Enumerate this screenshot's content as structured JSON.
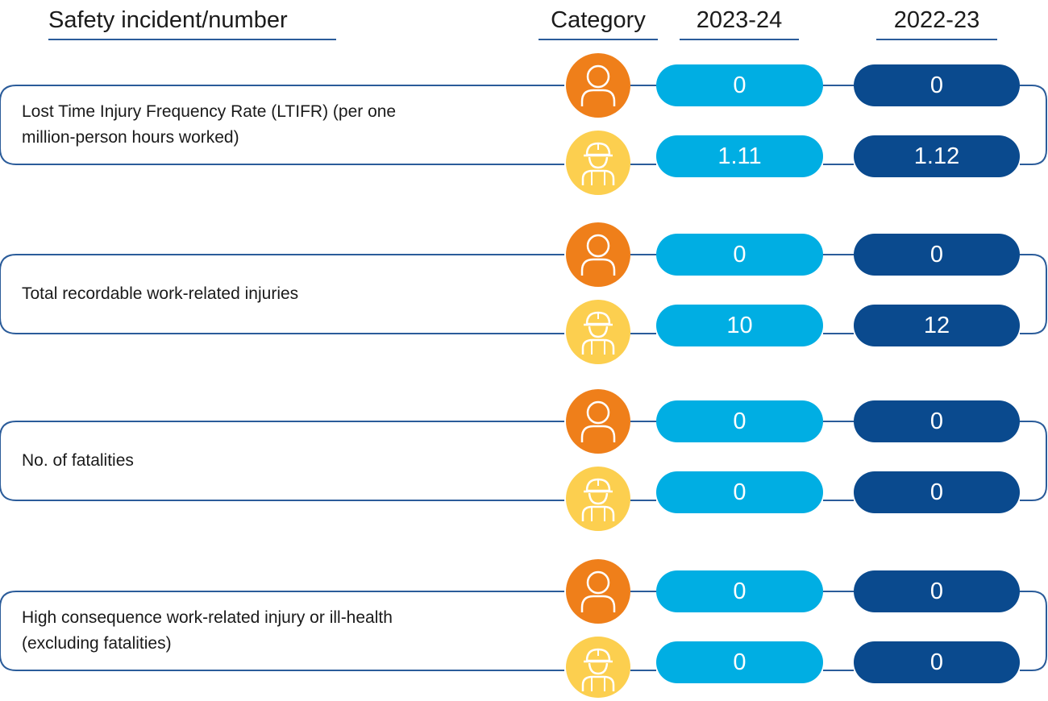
{
  "header": {
    "incident": "Safety incident/number",
    "category": "Category",
    "year_current": "2023-24",
    "year_previous": "2022-23"
  },
  "colors": {
    "employee_icon": "#ef7f1a",
    "worker_icon": "#fccf4f",
    "current_year_pill": "#00aee3",
    "previous_year_pill": "#0a4a8e",
    "frame_line": "#2b5c9a"
  },
  "icons": {
    "employee": "person-icon",
    "worker": "hard-hat-worker-icon"
  },
  "rows": [
    {
      "label": "Lost Time Injury Frequency Rate (LTIFR) (per one million-person hours worked)",
      "employee": {
        "current": "0",
        "previous": "0"
      },
      "worker": {
        "current": "1.11",
        "previous": "1.12"
      }
    },
    {
      "label": "Total recordable work-related injuries",
      "employee": {
        "current": "0",
        "previous": "0"
      },
      "worker": {
        "current": "10",
        "previous": "12"
      }
    },
    {
      "label": "No. of fatalities",
      "employee": {
        "current": "0",
        "previous": "0"
      },
      "worker": {
        "current": "0",
        "previous": "0"
      }
    },
    {
      "label": "High consequence work-related injury or ill-health (excluding fatalities)",
      "employee": {
        "current": "0",
        "previous": "0"
      },
      "worker": {
        "current": "0",
        "previous": "0"
      }
    }
  ]
}
